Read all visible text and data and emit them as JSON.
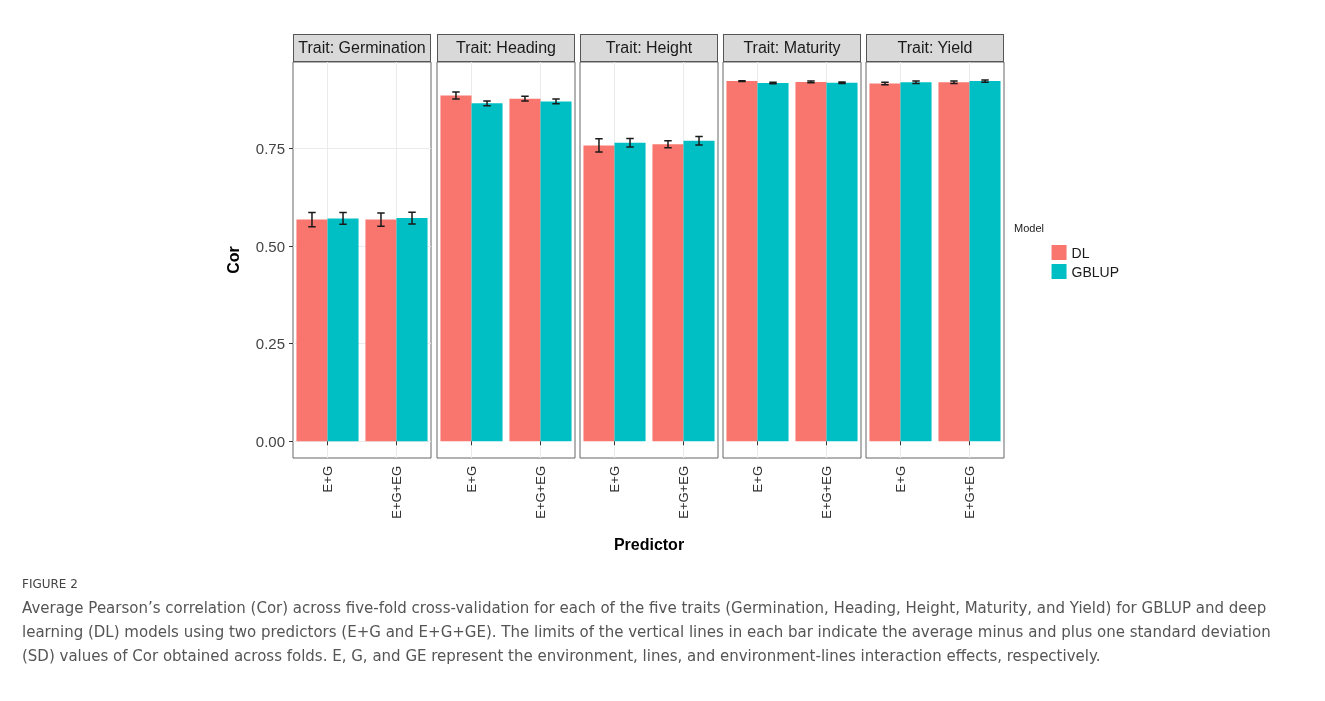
{
  "chart_data": [
    {
      "type": "bar",
      "title": "Trait: Germination",
      "ylabel": "Cor",
      "categories": [
        "E+G",
        "E+G+EG"
      ],
      "series": [
        {
          "color": "#f8766d",
          "values": [
            0.568,
            0.568
          ],
          "errors": [
            0.018,
            0.017
          ]
        },
        {
          "color": "#00bfc4",
          "values": [
            0.571,
            0.572
          ],
          "errors": [
            0.015,
            0.015
          ]
        }
      ],
      "ylim": [
        -0.043,
        0.972
      ],
      "yticks": [
        {
          "value": 0,
          "label": "0.00"
        },
        {
          "value": 0.25,
          "label": "0.25"
        },
        {
          "value": 0.5,
          "label": "0.50"
        },
        {
          "value": 0.75,
          "label": "0.75"
        }
      ],
      "grid": true,
      "legend": false,
      "annotations": [
        "FIGURE 2",
        "Average Pearson’s correlation (Cor) across five-fold cross-validation for each of the five traits (Germination, Heading, Height, Maturity, and Yield) for GBLUP and deep learning (DL) models using two predictors (E+G and E+G+GE). The limits of the vertical lines in each bar indicate the average minus and plus one standard deviation (SD) values of Cor obtained across folds. E, G, and GE represent the environment, lines, and environment-lines interaction effects, respectively."
      ]
    },
    {
      "type": "bar",
      "title": "Trait: Heading",
      "categories": [
        "E+G",
        "E+G+EG"
      ],
      "series": [
        {
          "color": "#f8766d",
          "values": [
            0.886,
            0.878
          ],
          "errors": [
            0.009,
            0.006
          ]
        },
        {
          "color": "#00bfc4",
          "values": [
            0.866,
            0.871
          ],
          "errors": [
            0.006,
            0.006
          ]
        }
      ],
      "ylim": [
        -0.043,
        0.972
      ],
      "grid": true,
      "legend": false,
      "tick_labels": "x"
    },
    {
      "type": "bar",
      "title": "Trait: Height",
      "xlabel": "Predictor",
      "categories": [
        "E+G",
        "E+G+EG"
      ],
      "series": [
        {
          "color": "#f8766d",
          "values": [
            0.758,
            0.761
          ],
          "errors": [
            0.017,
            0.009
          ]
        },
        {
          "color": "#00bfc4",
          "values": [
            0.765,
            0.77
          ],
          "errors": [
            0.011,
            0.011
          ]
        }
      ],
      "ylim": [
        -0.043,
        0.972
      ],
      "grid": true,
      "legend": false,
      "tick_labels": "x"
    },
    {
      "type": "bar",
      "title": "Trait: Maturity",
      "categories": [
        "E+G",
        "E+G+EG"
      ],
      "series": [
        {
          "color": "#f8766d",
          "values": [
            0.923,
            0.921
          ],
          "errors": [
            0.001,
            0.002
          ]
        },
        {
          "color": "#00bfc4",
          "values": [
            0.918,
            0.919
          ],
          "errors": [
            0.002,
            0.002
          ]
        }
      ],
      "ylim": [
        -0.043,
        0.972
      ],
      "grid": true,
      "legend": false,
      "tick_labels": "x"
    },
    {
      "type": "bar",
      "title": "Trait: Yield",
      "legend_title": "Model",
      "categories": [
        "E+G",
        "E+G+EG"
      ],
      "series": [
        {
          "name": "DL",
          "color": "#f8766d",
          "values": [
            0.917,
            0.92
          ],
          "errors": [
            0.003,
            0.003
          ]
        },
        {
          "name": "GBLUP",
          "color": "#00bfc4",
          "values": [
            0.92,
            0.923
          ],
          "errors": [
            0.003,
            0.003
          ]
        }
      ],
      "ylim": [
        -0.043,
        0.972
      ],
      "grid": true,
      "legend": "right",
      "tick_labels": "x"
    }
  ]
}
